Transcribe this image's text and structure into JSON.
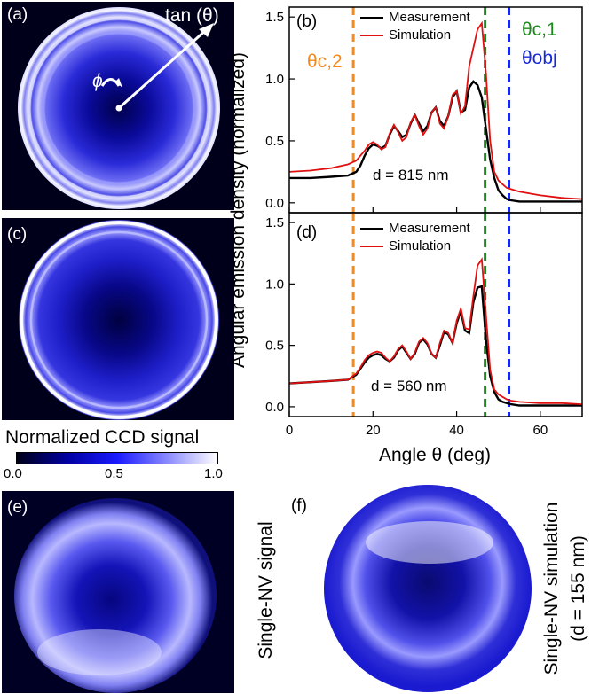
{
  "panels": {
    "a": {
      "label": "(a)",
      "axis_label": "tan (θ)",
      "phi": "ϕ"
    },
    "b": {
      "label": "(b)",
      "thickness": "d = 815 nm"
    },
    "c": {
      "label": "(c)"
    },
    "d": {
      "label": "(d)",
      "thickness": "d = 560 nm"
    },
    "e": {
      "label": "(e)",
      "side_label": "Single-NV signal"
    },
    "f": {
      "label": "(f)",
      "side_label_1": "Single-NV simulation",
      "side_label_2": "(d = 155 nm)"
    }
  },
  "colorbar": {
    "title": "Normalized CCD signal",
    "ticks": [
      "0.0",
      "0.5",
      "1.0"
    ]
  },
  "annotations": {
    "theta_c2": "θc,2",
    "theta_c1": "θc,1",
    "theta_obj": "θobj"
  },
  "colors": {
    "measurement": "#000000",
    "simulation": "#e01010",
    "theta_c2": "#f28a1e",
    "theta_c1": "#1e8a1e",
    "theta_obj": "#1a2ad8",
    "ccd_dark": "#000018",
    "ccd_mid": "#1a1aff",
    "ccd_bright": "#ffffff"
  },
  "chart_data": [
    {
      "type": "line",
      "panel": "(b)",
      "xlabel": "Angle θ (deg)",
      "ylabel": "Angular emission density (normalized)",
      "xlim": [
        0,
        70
      ],
      "ylim": [
        -0.08,
        1.58
      ],
      "xticks": [
        "0",
        "20",
        "40",
        "60"
      ],
      "yticks": [
        "0.0",
        "0.5",
        "1.0",
        "1.5"
      ],
      "vlines": {
        "theta_c2": 15.3,
        "theta_c1": 46.8,
        "theta_obj": 52.5
      },
      "legend": [
        "Measurement",
        "Simulation"
      ],
      "series": [
        {
          "name": "Measurement",
          "x": [
            0,
            5,
            10,
            14,
            16,
            17,
            18,
            19,
            20,
            21,
            22,
            23,
            24,
            25,
            26,
            27,
            28,
            29,
            30,
            31,
            32,
            33,
            34,
            35,
            36,
            37,
            38,
            39,
            40,
            41,
            42,
            43,
            44,
            45,
            46,
            47,
            48,
            49,
            50,
            51,
            52,
            53,
            55,
            60,
            65,
            70
          ],
          "y": [
            0.2,
            0.2,
            0.21,
            0.22,
            0.25,
            0.3,
            0.38,
            0.44,
            0.47,
            0.46,
            0.44,
            0.46,
            0.55,
            0.62,
            0.58,
            0.53,
            0.55,
            0.64,
            0.71,
            0.64,
            0.58,
            0.62,
            0.73,
            0.77,
            0.66,
            0.62,
            0.7,
            0.85,
            0.9,
            0.73,
            0.75,
            0.93,
            0.98,
            0.95,
            0.85,
            0.6,
            0.35,
            0.2,
            0.1,
            0.06,
            0.03,
            0.02,
            0.01,
            0.01,
            0.01,
            0.01
          ]
        },
        {
          "name": "Simulation",
          "x": [
            0,
            5,
            10,
            14,
            16,
            17,
            18,
            19,
            20,
            21,
            22,
            23,
            24,
            25,
            26,
            27,
            28,
            29,
            30,
            31,
            32,
            33,
            34,
            35,
            36,
            37,
            38,
            39,
            40,
            41,
            42,
            43,
            44,
            45,
            46,
            47,
            48,
            49,
            50,
            51,
            52,
            53,
            55,
            60,
            65,
            70
          ],
          "y": [
            0.25,
            0.26,
            0.28,
            0.31,
            0.34,
            0.38,
            0.42,
            0.47,
            0.49,
            0.47,
            0.43,
            0.45,
            0.56,
            0.63,
            0.57,
            0.5,
            0.53,
            0.65,
            0.71,
            0.62,
            0.55,
            0.6,
            0.73,
            0.77,
            0.64,
            0.6,
            0.7,
            0.87,
            0.9,
            0.72,
            0.78,
            1.1,
            1.25,
            1.4,
            1.45,
            1.05,
            0.5,
            0.25,
            0.18,
            0.15,
            0.12,
            0.11,
            0.09,
            0.06,
            0.04,
            0.03
          ]
        }
      ]
    },
    {
      "type": "line",
      "panel": "(d)",
      "xlabel": "Angle θ (deg)",
      "ylabel": "Angular emission density (normalized)",
      "xlim": [
        0,
        70
      ],
      "ylim": [
        -0.08,
        1.58
      ],
      "xticks": [
        "0",
        "20",
        "40",
        "60"
      ],
      "yticks": [
        "0.0",
        "0.5",
        "1.0",
        "1.5"
      ],
      "vlines": {
        "theta_c2": 15.3,
        "theta_c1": 46.8,
        "theta_obj": 52.5
      },
      "legend": [
        "Measurement",
        "Simulation"
      ],
      "series": [
        {
          "name": "Measurement",
          "x": [
            0,
            5,
            10,
            14,
            16,
            17,
            18,
            19,
            20,
            21,
            22,
            23,
            24,
            25,
            26,
            27,
            28,
            29,
            30,
            31,
            32,
            33,
            34,
            35,
            36,
            37,
            38,
            39,
            40,
            41,
            42,
            43,
            44,
            45,
            46,
            47,
            48,
            49,
            50,
            51,
            52,
            53,
            55,
            60,
            65,
            70
          ],
          "y": [
            0.19,
            0.2,
            0.21,
            0.22,
            0.26,
            0.31,
            0.36,
            0.4,
            0.42,
            0.43,
            0.42,
            0.39,
            0.37,
            0.4,
            0.46,
            0.49,
            0.44,
            0.39,
            0.43,
            0.52,
            0.55,
            0.51,
            0.43,
            0.4,
            0.5,
            0.61,
            0.59,
            0.52,
            0.68,
            0.78,
            0.62,
            0.6,
            0.85,
            0.97,
            0.98,
            0.55,
            0.25,
            0.12,
            0.06,
            0.04,
            0.03,
            0.02,
            0.01,
            0.01,
            0.01,
            0.01
          ]
        },
        {
          "name": "Simulation",
          "x": [
            0,
            5,
            10,
            14,
            16,
            17,
            18,
            19,
            20,
            21,
            22,
            23,
            24,
            25,
            26,
            27,
            28,
            29,
            30,
            31,
            32,
            33,
            34,
            35,
            36,
            37,
            38,
            39,
            40,
            41,
            42,
            43,
            44,
            45,
            46,
            47,
            48,
            49,
            50,
            51,
            52,
            53,
            55,
            60,
            65,
            70
          ],
          "y": [
            0.19,
            0.2,
            0.21,
            0.22,
            0.27,
            0.32,
            0.38,
            0.42,
            0.44,
            0.45,
            0.44,
            0.4,
            0.37,
            0.41,
            0.47,
            0.5,
            0.45,
            0.39,
            0.44,
            0.53,
            0.56,
            0.52,
            0.43,
            0.4,
            0.52,
            0.62,
            0.6,
            0.52,
            0.7,
            0.8,
            0.64,
            0.63,
            0.9,
            1.15,
            1.2,
            0.75,
            0.3,
            0.14,
            0.1,
            0.08,
            0.06,
            0.05,
            0.04,
            0.03,
            0.03,
            0.02
          ]
        }
      ]
    }
  ]
}
